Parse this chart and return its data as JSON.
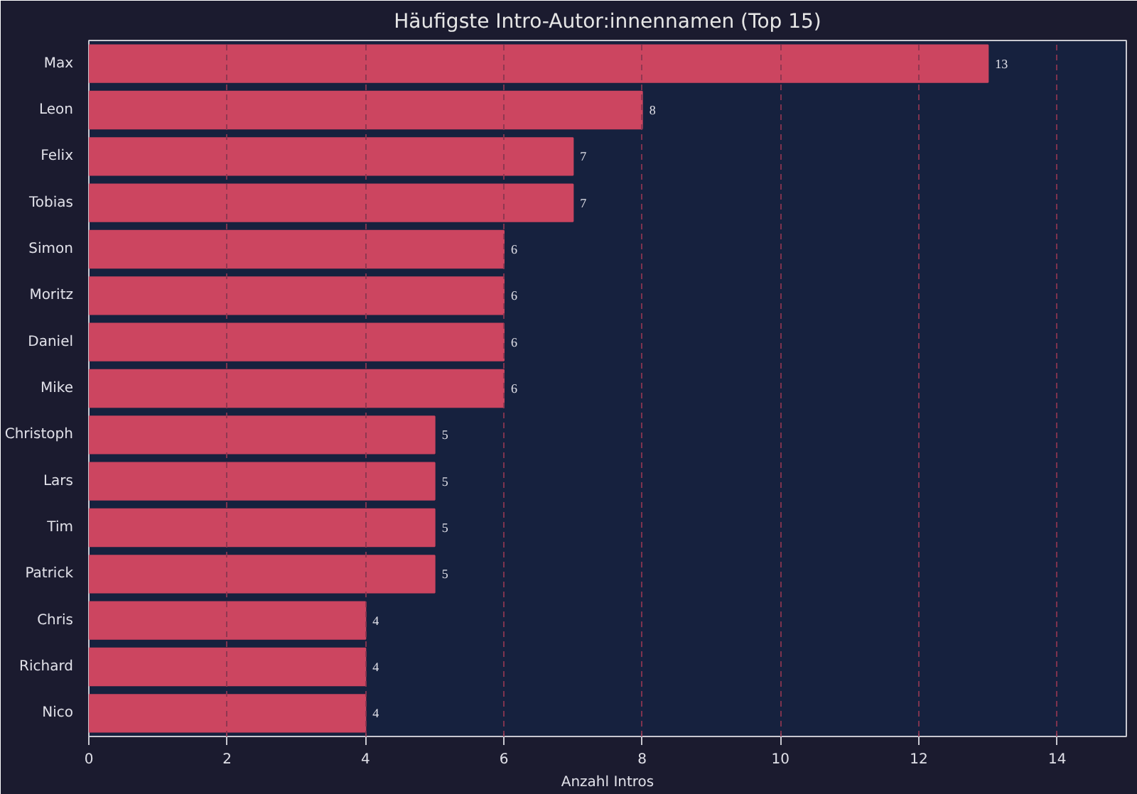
{
  "chart_data": {
    "type": "bar",
    "orientation": "horizontal",
    "title": "Häufigste Intro-Autor:innennamen (Top 15)",
    "xlabel": "Anzahl Intros",
    "categories": [
      "Max",
      "Leon",
      "Felix",
      "Tobias",
      "Simon",
      "Moritz",
      "Daniel",
      "Mike",
      "Christoph",
      "Lars",
      "Tim",
      "Patrick",
      "Chris",
      "Richard",
      "Nico"
    ],
    "values": [
      13,
      8,
      7,
      7,
      6,
      6,
      6,
      6,
      5,
      5,
      5,
      5,
      4,
      4,
      4
    ],
    "color": "#cc4560",
    "xlim": [
      0,
      15
    ],
    "xticks": [
      0,
      2,
      4,
      6,
      8,
      10,
      12,
      14
    ],
    "grid": "x",
    "data_labels": true
  }
}
